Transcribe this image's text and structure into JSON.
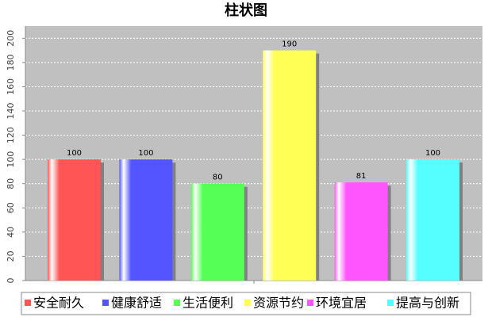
{
  "chart_data": {
    "type": "bar",
    "title": "柱状图",
    "categories": [
      "安全耐久",
      "健康舒适",
      "生活便利",
      "资源节约",
      "环境宜居",
      "提高与创新"
    ],
    "values": [
      100,
      100,
      80,
      190,
      81,
      100
    ],
    "colors": [
      "#ff5555",
      "#5555ff",
      "#55ff55",
      "#ffff55",
      "#ff55ff",
      "#55ffff"
    ],
    "ylim": [
      0,
      210
    ],
    "yticks": [
      0,
      20,
      40,
      60,
      80,
      100,
      120,
      140,
      160,
      180,
      200
    ],
    "grid": true,
    "legend": "bottom"
  }
}
